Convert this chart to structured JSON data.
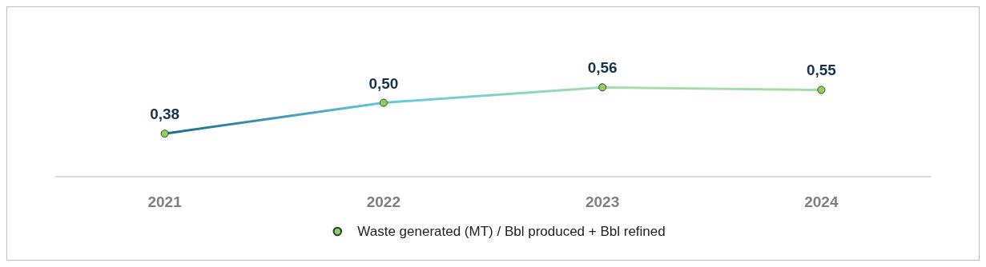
{
  "chart_data": {
    "type": "line",
    "categories": [
      "2021",
      "2022",
      "2023",
      "2024"
    ],
    "series": [
      {
        "name": "Waste generated (MT) / Bbl produced + Bbl refined",
        "color": "#92d050",
        "colors": [
          "#1a6b8c",
          "#63c6e3",
          "#a3deaa",
          "#a3deaa"
        ],
        "values": [
          0.38,
          0.5,
          0.56,
          0.55
        ],
        "value_labels": [
          "0,38",
          "0,50",
          "0,56",
          "0,55"
        ]
      }
    ],
    "tick_labels": "x",
    "grid": false,
    "legend": "bottom",
    "marker": "circle",
    "line_style": "solid"
  }
}
